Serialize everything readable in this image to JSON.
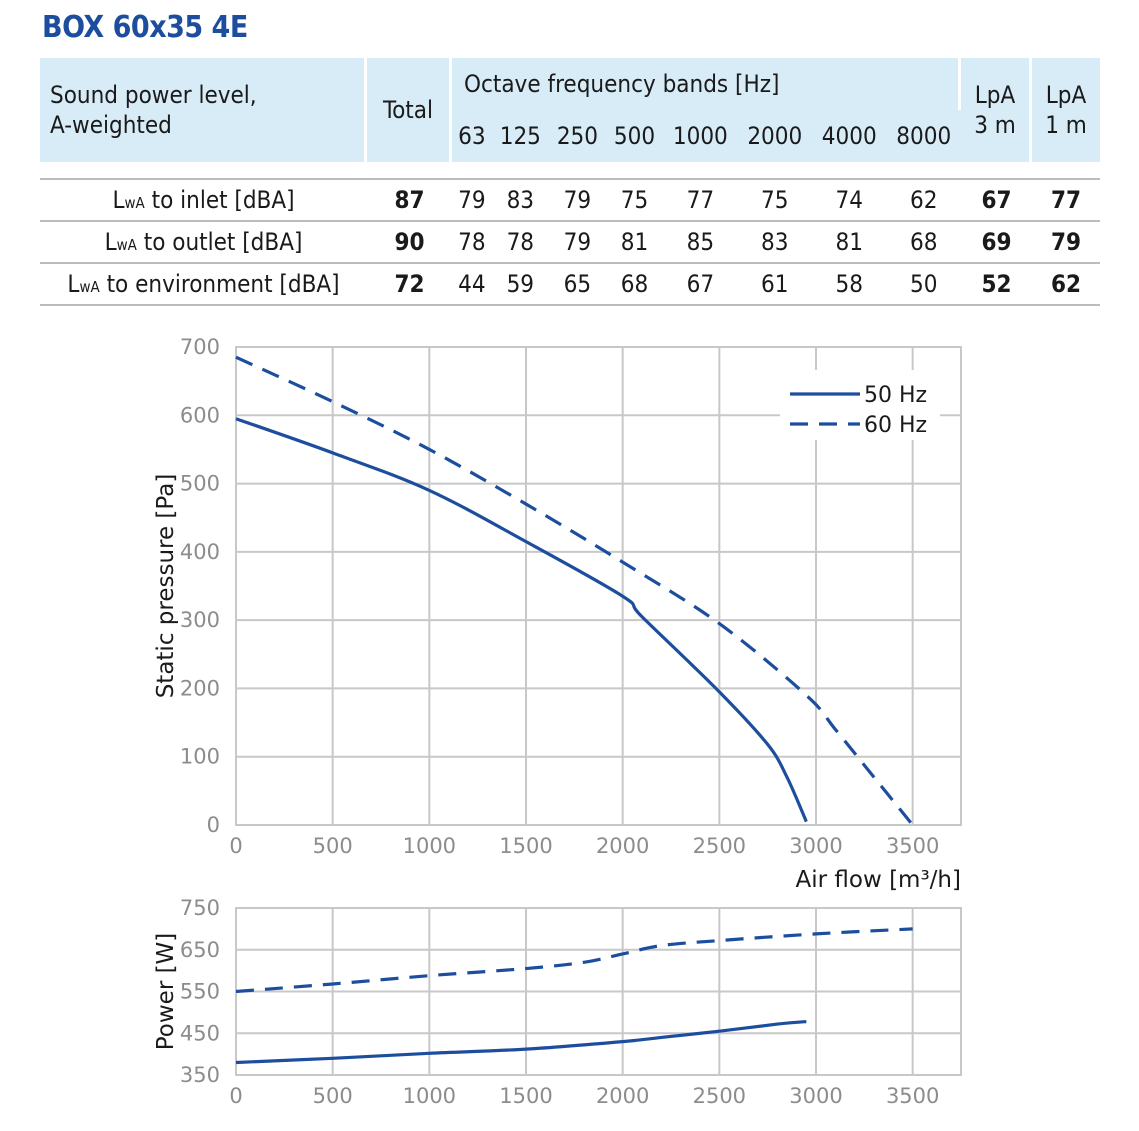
{
  "title": "BOX 60x35 4E",
  "table": {
    "corner_line1": "Sound power level,",
    "corner_line2": "A-weighted",
    "total_header": "Total",
    "octave_header": "Octave frequency bands [Hz]",
    "bands": [
      "63",
      "125",
      "250",
      "500",
      "1000",
      "2000",
      "4000",
      "8000"
    ],
    "lpa3_line1": "LpA",
    "lpa3_line2": "3 m",
    "lpa1_line1": "LpA",
    "lpa1_line2": "1 m",
    "rows": [
      {
        "label_main": "L",
        "label_sub": "wA",
        "label_rest": " to inlet [dBA]",
        "total": "87",
        "bands": [
          "79",
          "83",
          "79",
          "75",
          "77",
          "75",
          "74",
          "62"
        ],
        "lpa3": "67",
        "lpa1": "77"
      },
      {
        "label_main": "L",
        "label_sub": "wA",
        "label_rest": " to outlet [dBA]",
        "total": "90",
        "bands": [
          "78",
          "78",
          "79",
          "81",
          "85",
          "83",
          "81",
          "68"
        ],
        "lpa3": "69",
        "lpa1": "79"
      },
      {
        "label_main": "L",
        "label_sub": "wA",
        "label_rest": " to environment [dBA]",
        "total": "72",
        "bands": [
          "44",
          "59",
          "65",
          "68",
          "67",
          "61",
          "58",
          "50"
        ],
        "lpa3": "52",
        "lpa1": "62"
      }
    ]
  },
  "chart_data": [
    {
      "type": "line",
      "xlabel": "Air flow [m³/h]",
      "ylabel": "Static pressure [Pa]",
      "xlim": [
        0,
        3750
      ],
      "ylim": [
        0,
        700
      ],
      "xticks": [
        0,
        500,
        1000,
        1500,
        2000,
        2500,
        3000,
        3500
      ],
      "yticks": [
        0,
        100,
        200,
        300,
        400,
        500,
        600,
        700
      ],
      "grid": true,
      "legend": "top-right",
      "series": [
        {
          "name": "50 Hz",
          "style": "solid",
          "color": "#1d4e9e",
          "x": [
            0,
            500,
            1000,
            1500,
            2000,
            2100,
            2500,
            2750,
            2850,
            2950
          ],
          "y": [
            595,
            545,
            490,
            415,
            335,
            305,
            195,
            118,
            70,
            5
          ]
        },
        {
          "name": "60 Hz",
          "style": "dashed",
          "color": "#1d4e9e",
          "x": [
            0,
            500,
            1000,
            1500,
            2000,
            2500,
            2950,
            3100,
            3300,
            3500
          ],
          "y": [
            685,
            620,
            550,
            470,
            385,
            295,
            190,
            140,
            70,
            0
          ]
        }
      ]
    },
    {
      "type": "line",
      "xlabel": "",
      "ylabel": "Power [W]",
      "xlim": [
        0,
        3750
      ],
      "ylim": [
        350,
        750
      ],
      "xticks": [
        0,
        500,
        1000,
        1500,
        2000,
        2500,
        3000,
        3500
      ],
      "yticks": [
        350,
        450,
        550,
        650,
        750
      ],
      "grid": true,
      "series": [
        {
          "name": "50 Hz",
          "style": "solid",
          "color": "#1d4e9e",
          "x": [
            0,
            500,
            1000,
            1500,
            2000,
            2200,
            2500,
            2800,
            2950
          ],
          "y": [
            380,
            390,
            402,
            412,
            430,
            440,
            455,
            472,
            478
          ]
        },
        {
          "name": "60 Hz",
          "style": "dashed",
          "color": "#1d4e9e",
          "x": [
            0,
            500,
            1000,
            1500,
            1800,
            2000,
            2200,
            2500,
            3000,
            3500
          ],
          "y": [
            550,
            568,
            588,
            605,
            620,
            640,
            660,
            672,
            688,
            700
          ]
        }
      ]
    }
  ]
}
